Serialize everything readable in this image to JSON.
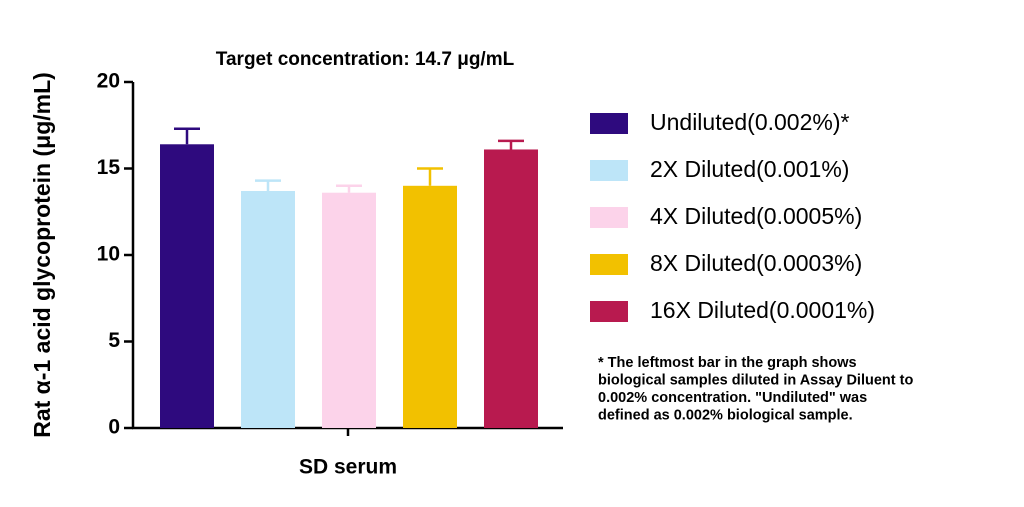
{
  "chart_data": {
    "type": "bar",
    "title": "Target concentration: 14.7 μg/mL",
    "y_label": "Rat α-1 acid glycoprotein (μg/mL)",
    "categories": [
      "SD serum"
    ],
    "ylim": [
      0,
      20
    ],
    "yticks": [
      0,
      5,
      10,
      15,
      20
    ],
    "series": [
      {
        "name": "Undiluted(0.002%)*",
        "color": "#2e0a7e",
        "values": [
          16.4
        ],
        "errors": [
          0.9
        ]
      },
      {
        "name": "2X Diluted(0.001%)",
        "color": "#bde5f8",
        "values": [
          13.7
        ],
        "errors": [
          0.6
        ]
      },
      {
        "name": "4X Diluted(0.0005%)",
        "color": "#fcd3ea",
        "values": [
          13.6
        ],
        "errors": [
          0.4
        ]
      },
      {
        "name": "8X Diluted(0.0003%)",
        "color": "#f2c100",
        "values": [
          14.0
        ],
        "errors": [
          1.0
        ]
      },
      {
        "name": "16X Diluted(0.0001%)",
        "color": "#b81a4f",
        "values": [
          16.1
        ],
        "errors": [
          0.5
        ]
      }
    ],
    "footnote": [
      "* The leftmost bar in the graph shows",
      "biological samples diluted in Assay Diluent to",
      "0.002% concentration. \"Undiluted\" was",
      "defined as 0.002% biological sample."
    ]
  }
}
